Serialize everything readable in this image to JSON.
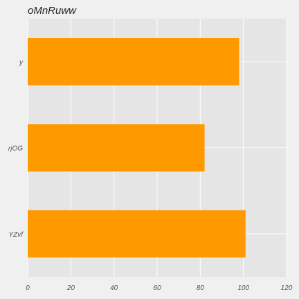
{
  "chart_data": {
    "type": "bar",
    "orientation": "horizontal",
    "title": "oMnRuww",
    "xlabel": "",
    "ylabel": "",
    "categories": [
      "y",
      "rjOG",
      "YZvf"
    ],
    "values": [
      98,
      82,
      101
    ],
    "xlim": [
      0,
      120
    ],
    "xticks": [
      0,
      20,
      40,
      60,
      80,
      100,
      120
    ],
    "grid": true,
    "colors": {
      "bar": "#ff9900",
      "plot_background": "#e5e5e5",
      "figure_background": "#f0f0f0",
      "grid": "#ffffff"
    }
  }
}
